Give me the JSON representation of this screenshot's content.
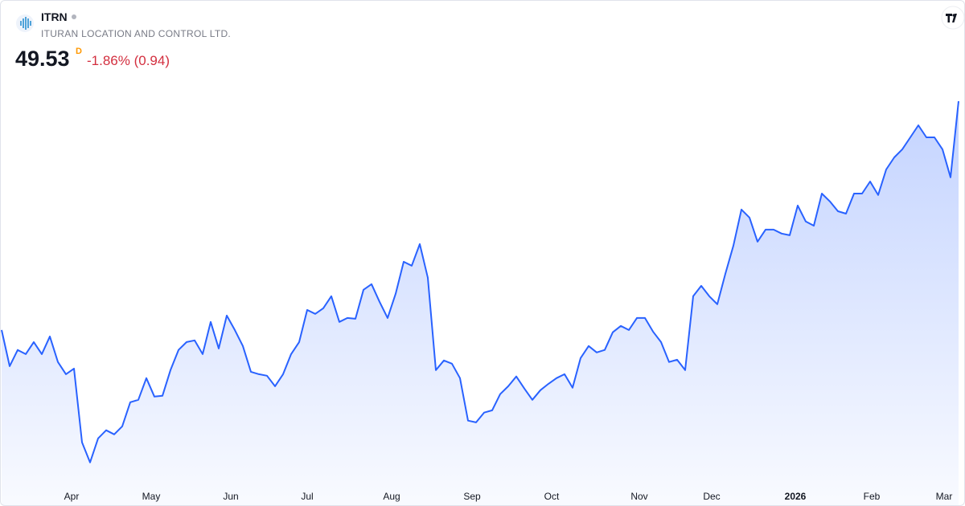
{
  "chart_data": {
    "type": "area",
    "title": "ITRN",
    "subtitle": "ITURAN LOCATION AND CONTROL LTD.",
    "last_price": "49.53",
    "interval": "D",
    "change": "-1.86% (0.94)",
    "color": "#2962ff",
    "xlim": [
      0,
      119
    ],
    "ylim": [
      29.24,
      54.87
    ],
    "xticks": [
      {
        "value": 8.7,
        "label": "Apr"
      },
      {
        "value": 18.6,
        "label": "May"
      },
      {
        "value": 28.5,
        "label": "Jun"
      },
      {
        "value": 38,
        "label": "Jul"
      },
      {
        "value": 48.5,
        "label": "Aug"
      },
      {
        "value": 58.5,
        "label": "Sep"
      },
      {
        "value": 68.4,
        "label": "Oct"
      },
      {
        "value": 79.3,
        "label": "Nov"
      },
      {
        "value": 88.3,
        "label": "Dec"
      },
      {
        "value": 98.7,
        "label": "2026"
      },
      {
        "value": 108.2,
        "label": "Feb"
      },
      {
        "value": 117.2,
        "label": "Mar"
      }
    ],
    "values": [
      37.36,
      35.44,
      36.3,
      36.08,
      36.72,
      36.08,
      37.02,
      35.66,
      35.01,
      35.31,
      31.39,
      30.32,
      31.6,
      32.03,
      31.81,
      32.24,
      33.52,
      33.65,
      34.8,
      33.82,
      33.86,
      35.23,
      36.3,
      36.72,
      36.81,
      36.08,
      37.79,
      36.38,
      38.13,
      37.36,
      36.51,
      35.14,
      35.01,
      34.93,
      34.37,
      35.01,
      36.08,
      36.72,
      38.43,
      38.22,
      38.52,
      39.16,
      37.79,
      38.0,
      37.96,
      39.5,
      39.8,
      38.86,
      38.0,
      39.29,
      40.99,
      40.78,
      41.93,
      40.14,
      35.23,
      35.74,
      35.57,
      34.8,
      32.54,
      32.45,
      32.97,
      33.09,
      33.95,
      34.37,
      34.89,
      34.25,
      33.65,
      34.16,
      34.5,
      34.8,
      35.01,
      34.29,
      35.87,
      36.51,
      36.17,
      36.3,
      37.24,
      37.58,
      37.36,
      38.0,
      38.0,
      37.28,
      36.72,
      35.66,
      35.78,
      35.23,
      39.16,
      39.71,
      39.16,
      38.73,
      40.35,
      41.85,
      43.77,
      43.34,
      42.06,
      42.7,
      42.7,
      42.49,
      42.4,
      43.98,
      43.13,
      42.91,
      44.62,
      44.2,
      43.68,
      43.55,
      44.62,
      44.62,
      45.26,
      44.54,
      45.9,
      46.54,
      46.97,
      47.61,
      48.25,
      47.61,
      47.61,
      46.97,
      45.48,
      49.53
    ]
  }
}
